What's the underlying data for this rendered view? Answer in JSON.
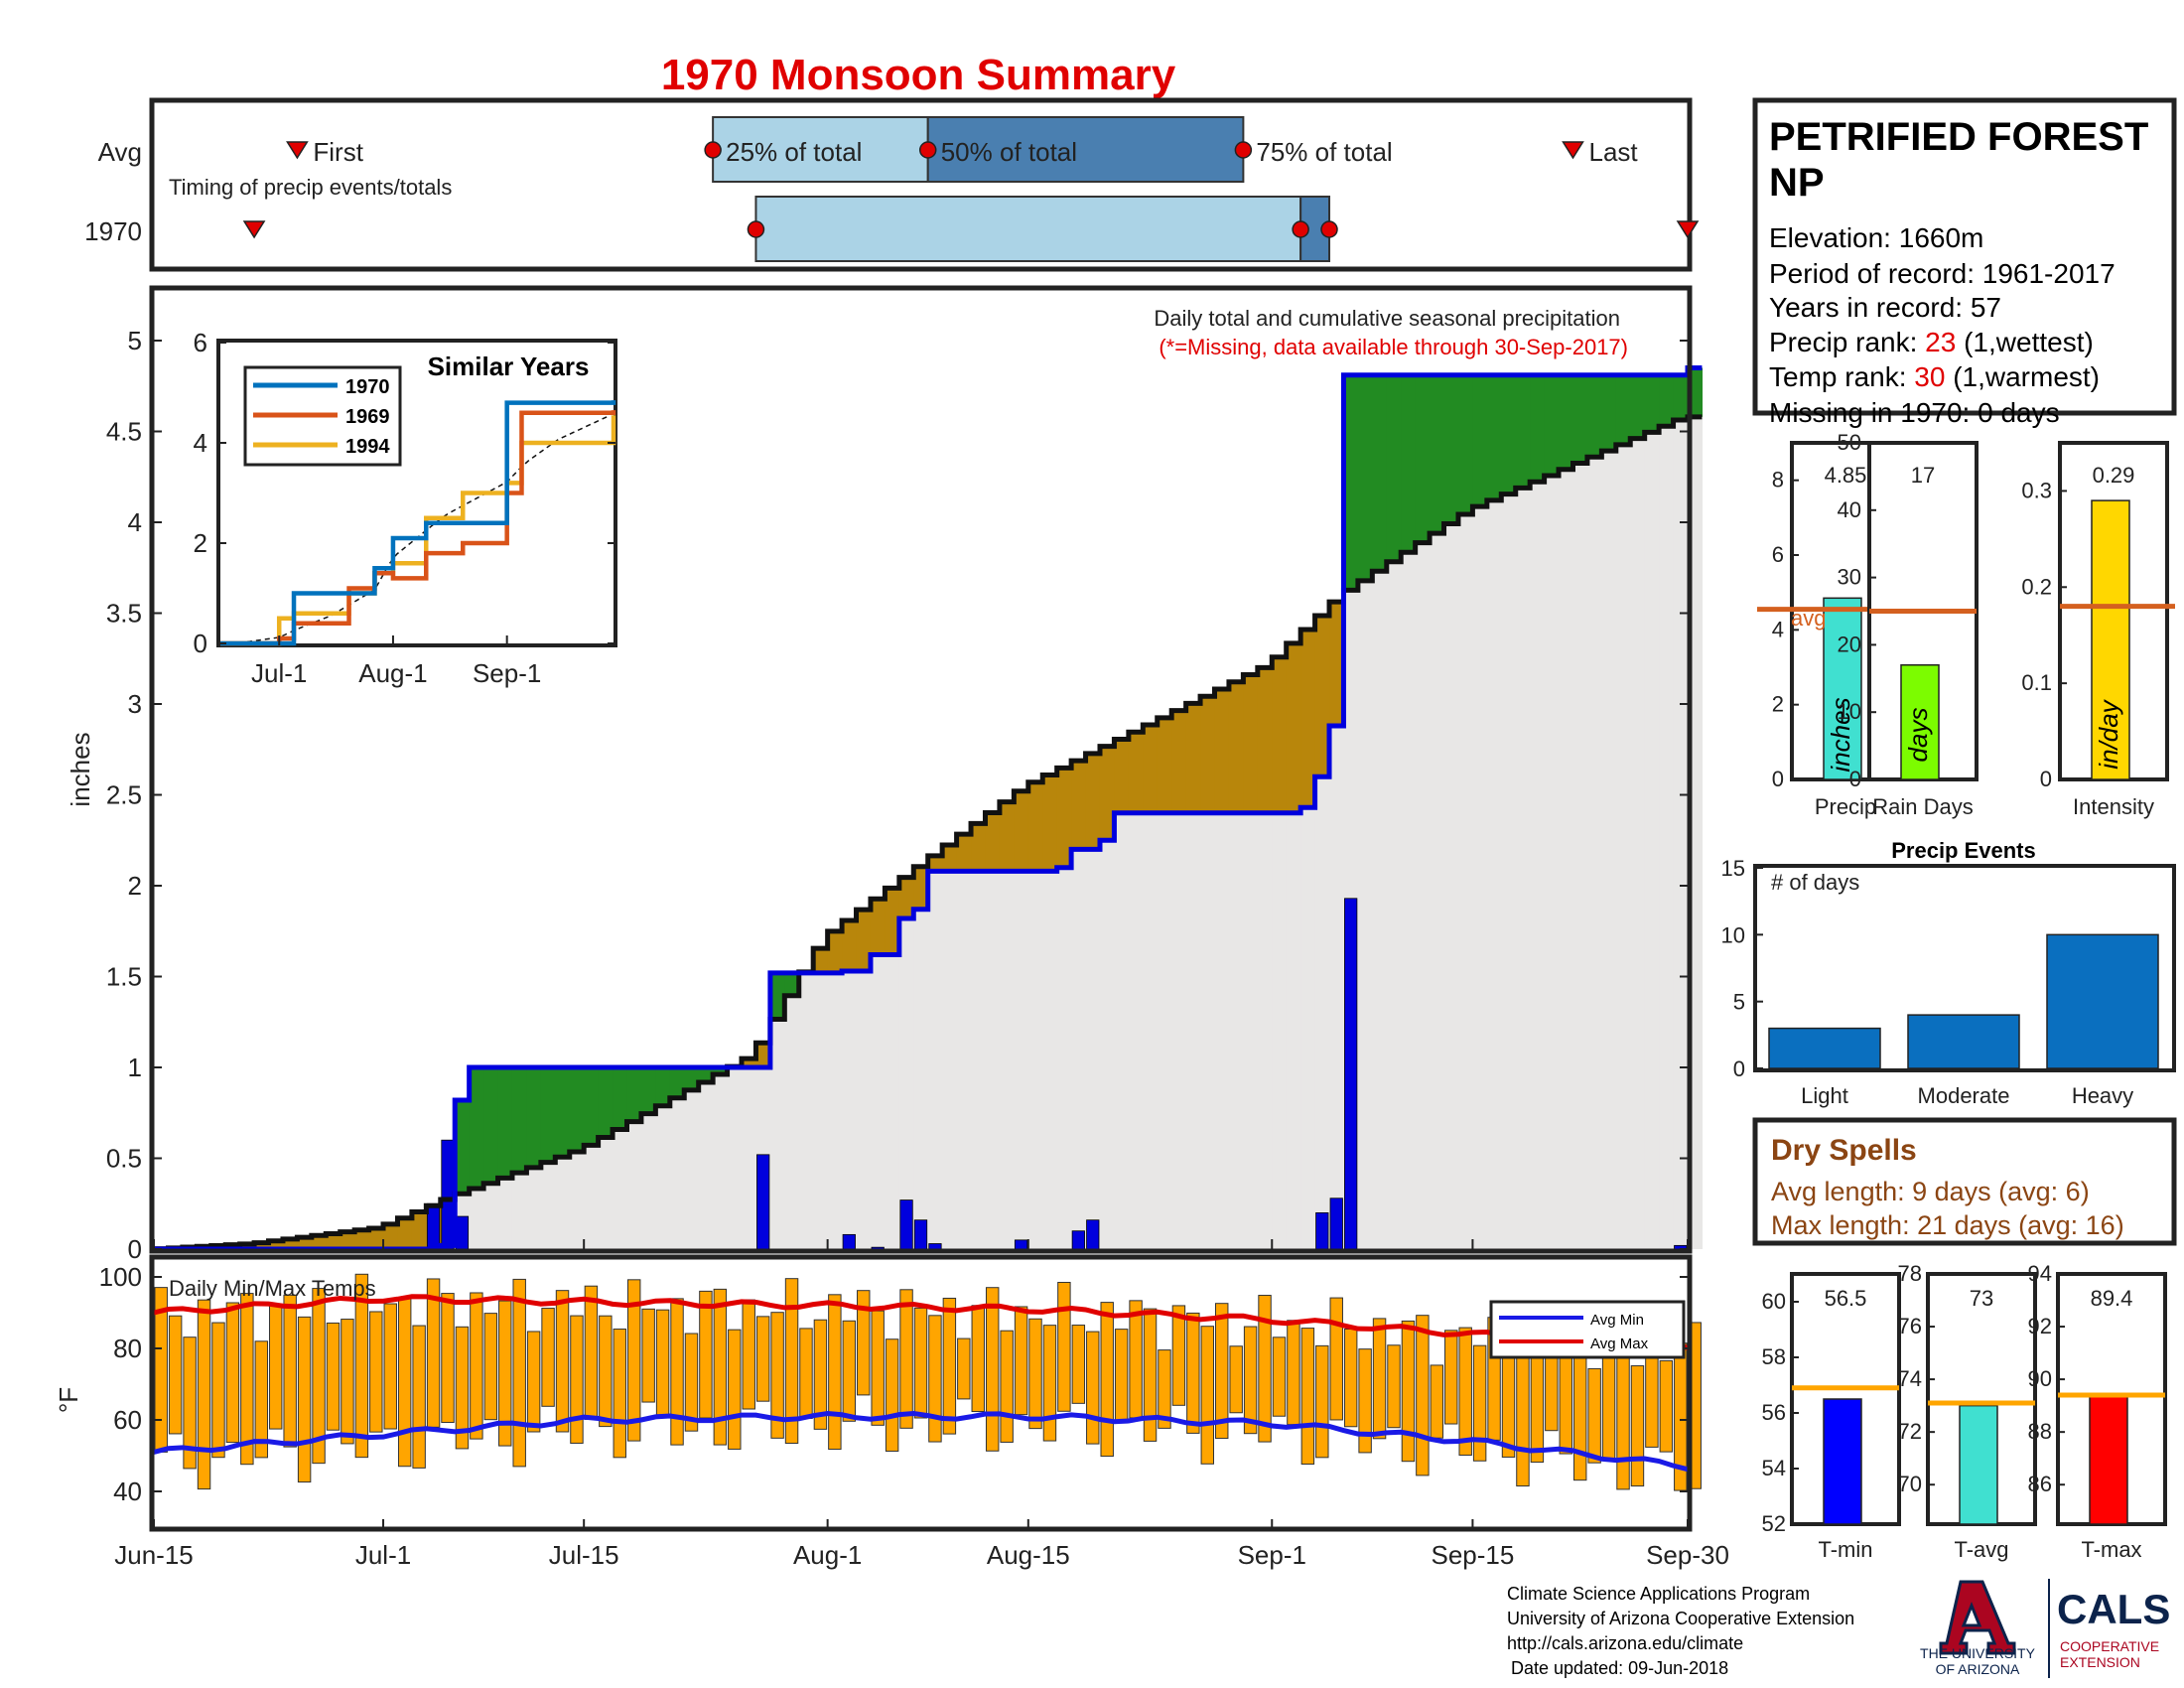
{
  "title": "1970 Monsoon Summary",
  "colors": {
    "title": "#e00000",
    "green": "#228b22",
    "brown": "#b8860b",
    "gray": "#e8e7e6",
    "blue": "#0000dd",
    "orange": "#ffa500",
    "avgMax": "#e00000",
    "avgMin": "#1a1ae6",
    "eventsBar": "#0a6fbf",
    "timingLight": "#abd3e6",
    "timingDark": "#4a7fb0",
    "refLine": "#d4601f"
  },
  "timing": {
    "row_labels": [
      "Avg",
      "1970"
    ],
    "legend": "Timing of precip events/totals",
    "labels": {
      "first": "First",
      "p25": "25% of total",
      "p50": "50% of total",
      "p75": "75% of total",
      "last": "Last"
    },
    "avg": {
      "first": "Jun-25",
      "p25": "Jul-24",
      "p50": "Aug-8",
      "p75": "Aug-30",
      "last": "Sep-22"
    },
    "y1970": {
      "first": "Jun-22",
      "p25": "Jul-27",
      "p50": "Sep-3",
      "p75": "Sep-5",
      "last": "Sep-30"
    }
  },
  "main": {
    "annotation1": "Daily total and cumulative seasonal precipitation",
    "annotation2": "(*=Missing, data available through 30-Sep-2017)",
    "ylabel": "inches",
    "yticks": [
      "0",
      "0.5",
      "1",
      "1.5",
      "2",
      "2.5",
      "3",
      "3.5",
      "4",
      "4.5",
      "5"
    ],
    "xticks": [
      "Jun-15",
      "Jul-1",
      "Jul-15",
      "Aug-1",
      "Aug-15",
      "Sep-1",
      "Sep-15",
      "Sep-30"
    ]
  },
  "inset": {
    "title": "Similar Years",
    "legend": [
      "1970",
      "1969",
      "1994"
    ],
    "yticks": [
      "0",
      "2",
      "4",
      "6"
    ],
    "xticks": [
      "Jul-1",
      "Aug-1",
      "Sep-1"
    ]
  },
  "temps": {
    "label": "Daily Min/Max Temps",
    "ylabel": "°F",
    "yticks": [
      "40",
      "60",
      "80",
      "100"
    ],
    "legend": [
      "Avg Min",
      "Avg Max"
    ]
  },
  "info": {
    "name_line1": "PETRIFIED FOREST",
    "name_line2": "NP",
    "elevation": "Elevation: 1660m",
    "period": "Period of record: 1961-2017",
    "years": "Years in record: 57",
    "precip_rank_label": "Precip rank: ",
    "precip_rank": "23",
    "precip_rank_note": " (1,wettest)",
    "temp_rank_label": "Temp rank: ",
    "temp_rank": "30",
    "temp_rank_note": " (1,warmest)",
    "missing": "Missing in 1970: 0 days"
  },
  "mini": {
    "precip": {
      "value": 4.85,
      "label": "4.85",
      "avg": 4.55,
      "unit": "inches",
      "xlabel": "Precip",
      "avg_label": "avg",
      "yticks": [
        "0",
        "2",
        "4",
        "6",
        "8"
      ]
    },
    "rain_days": {
      "value": 17,
      "label": "17",
      "avg": 25,
      "unit": "days",
      "xlabel": "Rain Days",
      "yticks": [
        "0",
        "10",
        "20",
        "30",
        "40",
        "50"
      ]
    },
    "intensity": {
      "value": 0.29,
      "label": "0.29",
      "avg": 0.18,
      "unit": "in/day",
      "xlabel": "Intensity",
      "yticks": [
        "0",
        "0.1",
        "0.2",
        "0.3"
      ]
    }
  },
  "events": {
    "title": "Precip Events",
    "ylabel": "# of days",
    "yticks": [
      "0",
      "5",
      "10",
      "15"
    ]
  },
  "dry": {
    "title": "Dry Spells",
    "avg_length": "Avg length: 9 days (avg: 6)",
    "max_length": "Max length: 21 days (avg: 16)"
  },
  "temp_bars": {
    "tmin": {
      "value": 56.5,
      "label": "56.5",
      "avg": 56.9,
      "xlabel": "T-min",
      "yticks": [
        "52",
        "54",
        "56",
        "58",
        "60"
      ]
    },
    "tavg": {
      "value": 73,
      "label": "73",
      "avg": 73.1,
      "xlabel": "T-avg",
      "yticks": [
        "70",
        "72",
        "74",
        "76",
        "78"
      ]
    },
    "tmax": {
      "value": 89.4,
      "label": "89.4",
      "avg": 89.4,
      "xlabel": "T-max",
      "yticks": [
        "86",
        "88",
        "90",
        "92",
        "94"
      ]
    }
  },
  "footer": {
    "line1": "Climate Science Applications Program",
    "line2": "University of Arizona Cooperative Extension",
    "line3": "http://cals.arizona.edu/climate",
    "line4": "Date updated: 09-Jun-2018",
    "ua_line1": "THE UNIVERSITY",
    "ua_line2": "OF ARIZONA",
    "cals": "CALS",
    "coop1": "COOPERATIVE",
    "coop2": "EXTENSION"
  },
  "chart_data": [
    {
      "type": "area",
      "title": "Daily total and cumulative seasonal precipitation",
      "ylabel": "inches",
      "ylim": [
        0,
        5.3
      ],
      "x_range": [
        "Jun-15",
        "Sep-30"
      ],
      "series": [
        {
          "name": "1970",
          "x": [
            "Jun-15",
            "Jul-5",
            "Jul-6",
            "Jul-7",
            "Jul-27",
            "Jul-28",
            "Aug-1",
            "Aug-2",
            "Aug-4",
            "Aug-6",
            "Aug-7",
            "Aug-8",
            "Aug-17",
            "Aug-18",
            "Aug-20",
            "Aug-21",
            "Sep-3",
            "Sep-4",
            "Sep-5",
            "Sep-6",
            "Sep-30"
          ],
          "values": [
            0,
            0.02,
            0.82,
            1.0,
            1.0,
            1.52,
            1.52,
            1.53,
            1.62,
            1.82,
            1.87,
            2.08,
            2.1,
            2.2,
            2.25,
            2.4,
            2.43,
            2.6,
            2.88,
            4.81,
            4.85
          ]
        },
        {
          "name": "average",
          "x": [
            "Jun-15",
            "Jun-22",
            "Jul-1",
            "Jul-6",
            "Jul-15",
            "Jul-27",
            "Aug-1",
            "Aug-15",
            "Sep-1",
            "Sep-6",
            "Sep-15",
            "Sep-30"
          ],
          "values": [
            0,
            0.03,
            0.12,
            0.29,
            0.55,
            1.07,
            1.72,
            2.55,
            3.22,
            3.6,
            4.07,
            4.58
          ]
        }
      ],
      "daily_precip": {
        "x": [
          "Jul-4",
          "Jul-5",
          "Jul-6",
          "Jul-27",
          "Aug-2",
          "Aug-4",
          "Aug-6",
          "Aug-7",
          "Aug-8",
          "Aug-14",
          "Aug-18",
          "Aug-19",
          "Sep-4",
          "Sep-5",
          "Sep-6",
          "Sep-29"
        ],
        "values": [
          0.25,
          0.6,
          0.18,
          0.52,
          0.08,
          0.01,
          0.27,
          0.16,
          0.03,
          0.05,
          0.1,
          0.16,
          0.2,
          0.28,
          1.93,
          0.02
        ]
      }
    },
    {
      "type": "line",
      "title": "Similar Years",
      "ylim": [
        0,
        6
      ],
      "x": [
        "Jun-15",
        "Jul-1",
        "Jul-5",
        "Jul-20",
        "Jul-27",
        "Aug-1",
        "Aug-10",
        "Aug-20",
        "Sep-1",
        "Sep-5",
        "Sep-30"
      ],
      "series": [
        {
          "name": "1970",
          "values": [
            0,
            0,
            1.0,
            1.0,
            1.5,
            2.1,
            2.4,
            2.4,
            4.8,
            4.8,
            4.85
          ]
        },
        {
          "name": "1969",
          "values": [
            0,
            0.1,
            0.4,
            1.1,
            1.4,
            1.3,
            1.8,
            2.0,
            3.0,
            4.6,
            4.65
          ]
        },
        {
          "name": "1994",
          "values": [
            0,
            0.5,
            0.6,
            1.0,
            1.4,
            1.6,
            2.5,
            3.0,
            3.2,
            4.0,
            4.55
          ]
        }
      ]
    },
    {
      "type": "bar",
      "title": "Daily Min/Max Temps",
      "ylabel": "°F",
      "ylim": [
        30,
        105
      ],
      "series": [
        {
          "name": "Avg Min",
          "x": [
            "Jun-15",
            "Jul-1",
            "Jul-15",
            "Aug-1",
            "Aug-15",
            "Sep-1",
            "Sep-15",
            "Sep-30"
          ],
          "values": [
            51,
            56,
            60,
            61,
            61,
            59,
            54,
            47
          ]
        },
        {
          "name": "Avg Max",
          "x": [
            "Jun-15",
            "Jul-1",
            "Jul-15",
            "Aug-1",
            "Aug-15",
            "Sep-1",
            "Sep-15",
            "Sep-30"
          ],
          "values": [
            90,
            94,
            93,
            92,
            91,
            88,
            84,
            81
          ]
        }
      ]
    },
    {
      "type": "bar",
      "title": "Precip Events",
      "ylabel": "# of days",
      "categories": [
        "Light",
        "Moderate",
        "Heavy"
      ],
      "values": [
        3,
        4,
        10
      ],
      "ylim": [
        0,
        15
      ]
    }
  ]
}
